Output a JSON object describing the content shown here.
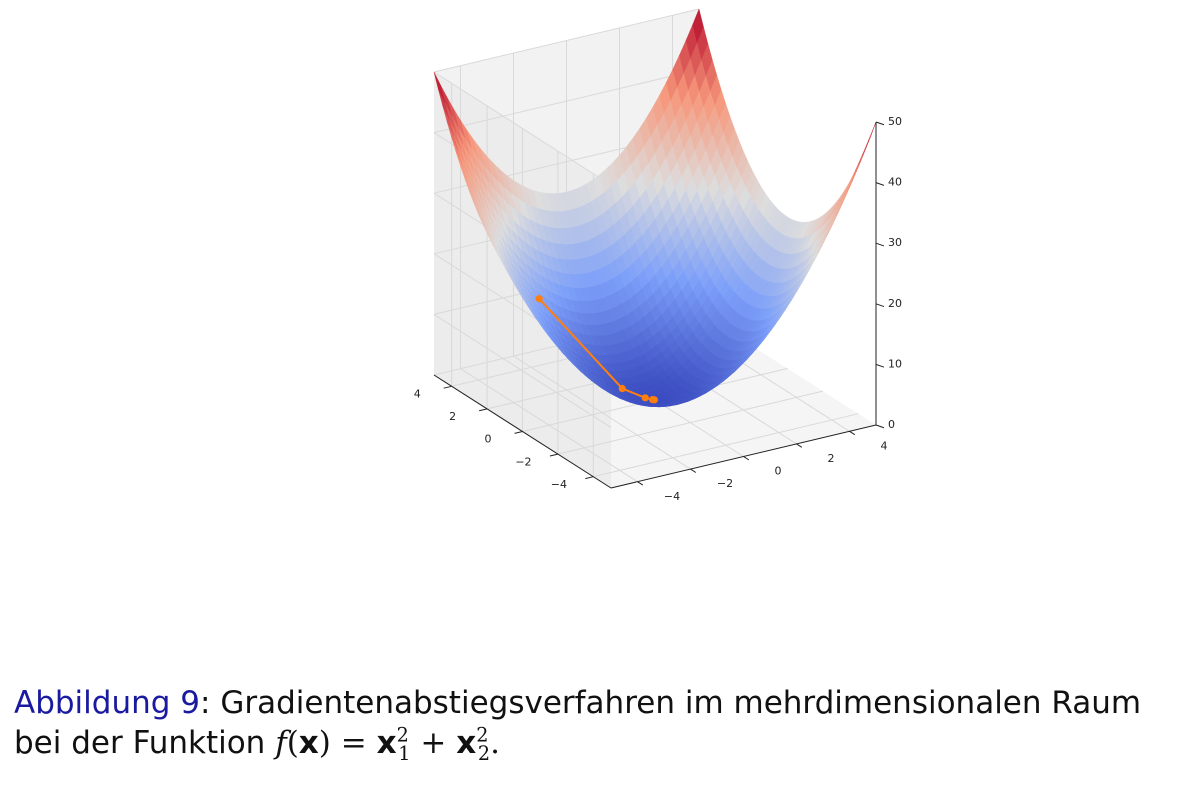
{
  "caption": {
    "label": "Abbildung 9",
    "sep": ":",
    "text_line1": "Gradientenabstiegsverfahren im mehrdimensionalen Raum",
    "text_line2": "bei der Funktion",
    "f": "f",
    "lp": "(",
    "x": "x",
    "rp": ")",
    "eq": "=",
    "x1": "x",
    "sub1": "1",
    "sup1": "2",
    "plus": "+",
    "x2": "x",
    "sub2": "2",
    "sup2": "2",
    "end": "."
  },
  "chart_data": {
    "type": "surface",
    "function": "f(x) = x1^2 + x2^2",
    "x_range": [
      -5,
      5
    ],
    "y_range": [
      -5,
      5
    ],
    "zlim": [
      0,
      50
    ],
    "x_ticks": [
      "−4",
      "−2",
      "0",
      "2",
      "4"
    ],
    "y_ticks": [
      "−4",
      "−2",
      "0",
      "2",
      "4"
    ],
    "z_ticks": [
      "0",
      "10",
      "20",
      "30",
      "40",
      "50"
    ],
    "x_tick_values": [
      -4,
      -2,
      0,
      2,
      4
    ],
    "y_tick_values": [
      -4,
      -2,
      0,
      2,
      4
    ],
    "z_tick_values": [
      0,
      10,
      20,
      30,
      40,
      50
    ],
    "colormap": "coolwarm",
    "colors": {
      "low": "#3b4cc0",
      "mid": "#dddddd",
      "high": "#b40426",
      "path": "#ff7f0e",
      "pane": "#f2f2f2",
      "grid": "#d9d9d9"
    },
    "grid": true,
    "descent_path": {
      "x": [
        2.8,
        0.8,
        0.25,
        0.06,
        0.02
      ],
      "y": [
        -2.5,
        -0.7,
        -0.2,
        -0.05,
        -0.01
      ],
      "z": [
        14.09,
        1.13,
        0.1,
        0.006,
        0.0005
      ]
    }
  }
}
